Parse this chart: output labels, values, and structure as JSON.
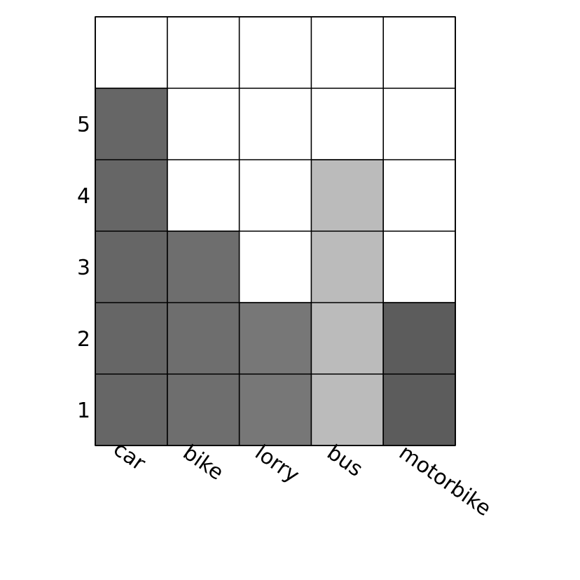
{
  "chart_data": {
    "type": "bar",
    "categories": [
      "car",
      "bike",
      "lorry",
      "bus",
      "motorbike"
    ],
    "values": [
      5,
      3,
      2,
      4,
      2
    ],
    "colors": [
      "#666666",
      "#6e6e6e",
      "#777777",
      "#bbbbbb",
      "#5c5c5c"
    ],
    "ylim": [
      0,
      6
    ],
    "yticks": [
      {
        "value": 0.5,
        "label": "1"
      },
      {
        "value": 1.5,
        "label": "2"
      },
      {
        "value": 2.5,
        "label": "3"
      },
      {
        "value": 3.5,
        "label": "4"
      },
      {
        "value": 4.5,
        "label": "5"
      }
    ],
    "grid": true
  }
}
